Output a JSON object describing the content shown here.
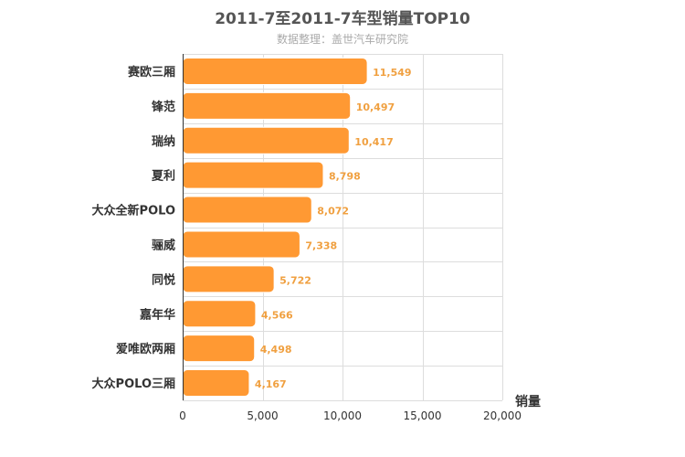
{
  "chart_data": {
    "type": "bar",
    "orientation": "horizontal",
    "title": "2011-7至2011-7车型销量TOP10",
    "subtitle": "数据整理：盖世汽车研究院",
    "xlabel": "销量",
    "categories": [
      "赛欧三厢",
      "锋范",
      "瑞纳",
      "夏利",
      "大众全新POLO",
      "骊威",
      "同悦",
      "嘉年华",
      "爱唯欧两厢",
      "大众POLO三厢"
    ],
    "values": [
      11549,
      10497,
      10417,
      8798,
      8072,
      7338,
      5722,
      4566,
      4498,
      4167
    ],
    "value_labels": [
      "11,549",
      "10,497",
      "10,417",
      "8,798",
      "8,072",
      "7,338",
      "5,722",
      "4,566",
      "4,498",
      "4,167"
    ],
    "xlim": [
      0,
      20000
    ],
    "ticks": [
      0,
      5000,
      10000,
      15000,
      20000
    ],
    "tick_labels": [
      "0",
      "5,000",
      "10,000",
      "15,000",
      "20,000"
    ],
    "grid": true,
    "bar_color": "#ff9933"
  }
}
